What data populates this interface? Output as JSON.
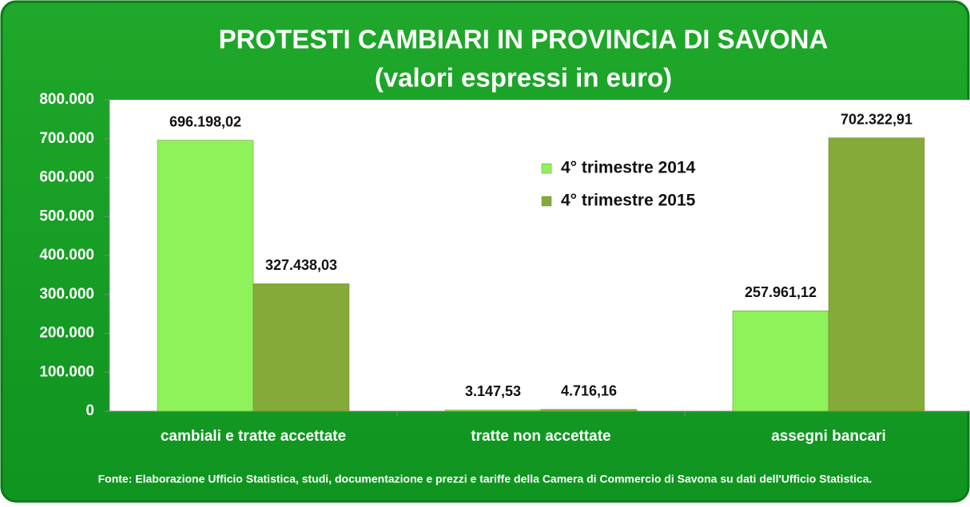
{
  "chart_data": {
    "type": "bar",
    "title": "PROTESTI CAMBIARI IN PROVINCIA DI SAVONA",
    "subtitle": "(valori espressi in euro)",
    "categories": [
      "cambiali e tratte accettate",
      "tratte non accettate",
      "assegni bancari"
    ],
    "series": [
      {
        "name": "4° trimestre 2014",
        "color": "#8ef25a",
        "values": [
          696198.02,
          3147.53,
          257961.12
        ],
        "value_labels": [
          "696.198,02",
          "3.147,53",
          "257.961,12"
        ]
      },
      {
        "name": "4° trimestre 2015",
        "color": "#86aa3a",
        "values": [
          327438.03,
          4716.16,
          702322.91
        ],
        "value_labels": [
          "327.438,03",
          "4.716,16",
          "702.322,91"
        ]
      }
    ],
    "ylim": [
      0,
      800000
    ],
    "yticks": [
      0,
      {
        "value": 100000,
        "label": "100.000"
      },
      {
        "value": 200000,
        "label": "200.000"
      },
      {
        "value": 300000,
        "label": "300.000"
      },
      {
        "value": 400000,
        "label": "400.000"
      },
      {
        "value": 500000,
        "label": "500.000"
      },
      {
        "value": 600000,
        "label": "600.000"
      },
      {
        "value": 700000,
        "label": "700.000"
      },
      {
        "value": 800000,
        "label": "800.000"
      }
    ],
    "legend": "top-right",
    "source": "Fonte: Elaborazione Ufficio Statistica, studi, documentazione e prezzi e tariffe della Camera di Commercio di Savona su dati dell'Ufficio Statistica."
  }
}
